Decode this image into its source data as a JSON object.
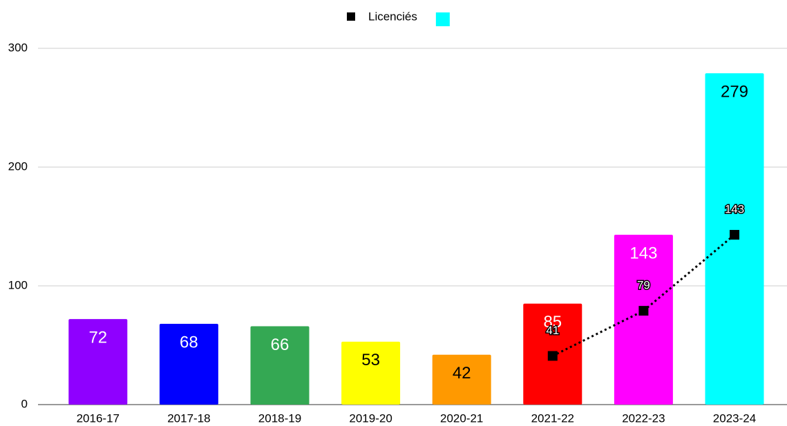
{
  "chart_data": {
    "type": "bar",
    "categories": [
      "2016-17",
      "2017-18",
      "2018-19",
      "2019-20",
      "2020-21",
      "2021-22",
      "2022-23",
      "2023-24"
    ],
    "series": [
      {
        "type": "bar",
        "color": "#00ffff",
        "colors": [
          "#8f00ff",
          "#0000ff",
          "#34a853",
          "#ffff00",
          "#ff9900",
          "#ff0000",
          "#ff00ff",
          "#00ffff"
        ],
        "values": [
          72,
          68,
          66,
          53,
          42,
          85,
          143,
          279
        ]
      },
      {
        "type": "line",
        "name": "Licenciés",
        "color": "#000000",
        "line_style": "dotted",
        "values": [
          null,
          null,
          null,
          null,
          null,
          41,
          79,
          143
        ]
      }
    ],
    "ylim": [
      0,
      300
    ],
    "yticks": [
      0,
      100,
      200,
      300
    ],
    "grid": true,
    "legend": "top"
  }
}
